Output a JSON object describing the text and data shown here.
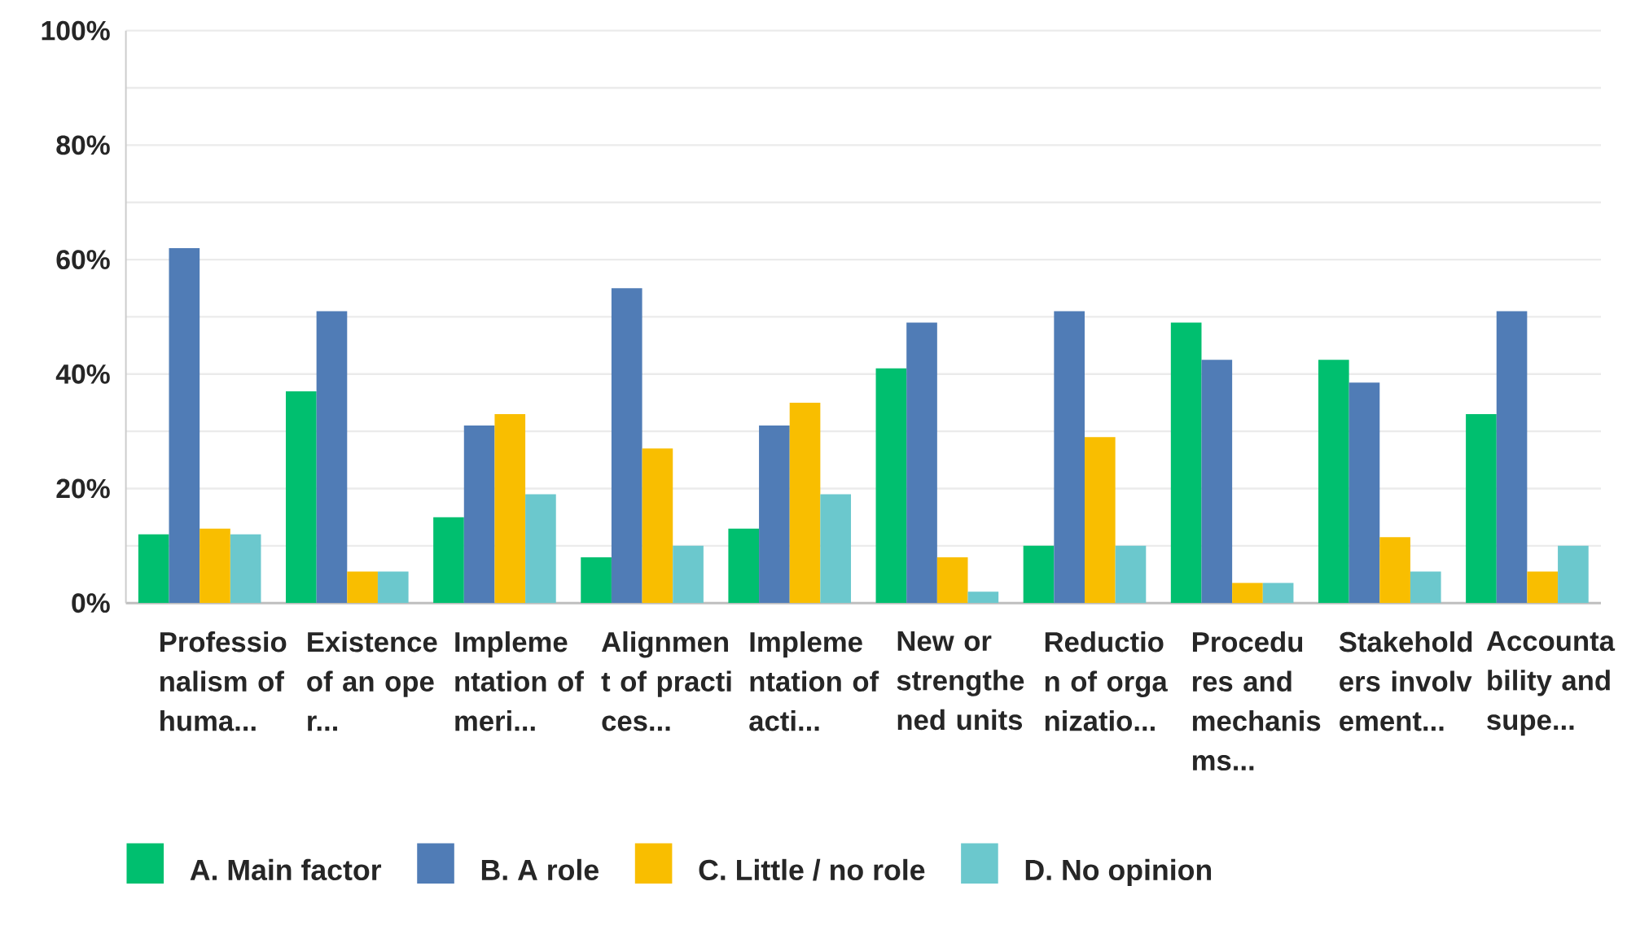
{
  "chart_data": {
    "type": "bar",
    "categories": [
      "Professionalism of huma...",
      "Existence of an oper...",
      "Implementation of meri...",
      "Alignment of practices...",
      "Implementation of acti...",
      "New or strengthened units",
      "Reduction of organizatio...",
      "Procedures and mechanisms...",
      "Stakeholders involvement...",
      "Accountability and supe..."
    ],
    "series": [
      {
        "name": "A. Main factor",
        "color": "#00bf6f",
        "values": [
          12,
          37,
          15,
          8,
          13,
          41,
          10,
          49,
          42.5,
          33
        ]
      },
      {
        "name": "B. A role",
        "color": "#507cb6",
        "values": [
          62,
          51,
          31,
          55,
          31,
          49,
          51,
          42.5,
          38.5,
          51
        ]
      },
      {
        "name": "C. Little / no role",
        "color": "#f9be00",
        "values": [
          13,
          5.5,
          33,
          27,
          35,
          8,
          29,
          3.5,
          11.5,
          5.5
        ]
      },
      {
        "name": "D. No opinion",
        "color": "#6bc8cd",
        "values": [
          12,
          5.5,
          19,
          10,
          19,
          2,
          10,
          3.5,
          5.5,
          10
        ]
      }
    ],
    "ylim": [
      0,
      100
    ],
    "yticks": [
      {
        "value": 0,
        "label": "0%"
      },
      {
        "value": 10,
        "label": null
      },
      {
        "value": 20,
        "label": "20%"
      },
      {
        "value": 30,
        "label": null
      },
      {
        "value": 40,
        "label": "40%"
      },
      {
        "value": 50,
        "label": null
      },
      {
        "value": 60,
        "label": "60%"
      },
      {
        "value": 70,
        "label": null
      },
      {
        "value": 80,
        "label": "80%"
      },
      {
        "value": 90,
        "label": null
      },
      {
        "value": 100,
        "label": "100%"
      }
    ],
    "grid": "y",
    "legend": "bottom"
  }
}
